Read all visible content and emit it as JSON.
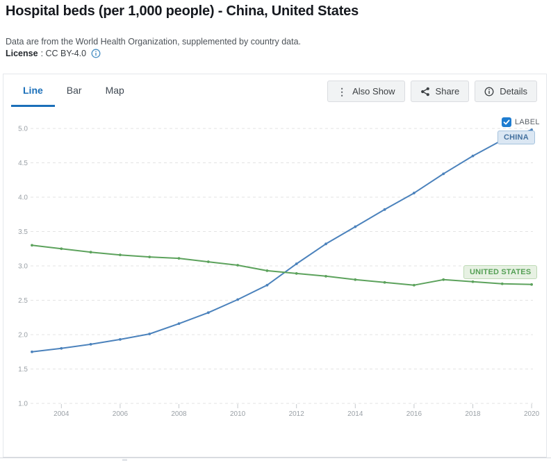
{
  "header": {
    "title": "Hospital beds (per 1,000 people) - China, United States",
    "subtitle": "Data are from the World Health Organization, supplemented by country data.",
    "license_label": "License",
    "license_value": ": CC BY-4.0"
  },
  "tabs": [
    {
      "label": "Line",
      "active": true
    },
    {
      "label": "Bar",
      "active": false
    },
    {
      "label": "Map",
      "active": false
    }
  ],
  "toolbar": {
    "also_show_label": "Also Show",
    "share_label": "Share",
    "details_label": "Details",
    "kebab_glyph": "⋮"
  },
  "legend": {
    "label_checkbox_text": "LABEL",
    "label_checkbox_checked": true
  },
  "colors": {
    "china_line": "#4b82bc",
    "us_line": "#5ca25c",
    "active_tab": "#1b6fb9",
    "checkbox_blue": "#1e7cd0",
    "gridline": "#e3e3e3",
    "axis_text": "#9aa0a6"
  },
  "chart_data": {
    "type": "line",
    "title": "Hospital beds (per 1,000 people) - China, United States",
    "xlabel": "",
    "ylabel": "",
    "x": [
      2003,
      2004,
      2005,
      2006,
      2007,
      2008,
      2009,
      2010,
      2011,
      2012,
      2013,
      2014,
      2015,
      2016,
      2017,
      2018,
      2019,
      2020
    ],
    "series": [
      {
        "name": "CHINA",
        "color": "#4b82bc",
        "values": [
          1.75,
          1.8,
          1.86,
          1.93,
          2.01,
          2.16,
          2.32,
          2.51,
          2.72,
          3.03,
          3.32,
          3.57,
          3.82,
          4.06,
          4.34,
          4.6,
          4.83,
          4.98
        ]
      },
      {
        "name": "UNITED STATES",
        "color": "#5ca25c",
        "values": [
          3.3,
          3.25,
          3.2,
          3.16,
          3.13,
          3.11,
          3.06,
          3.01,
          2.93,
          2.89,
          2.85,
          2.8,
          2.76,
          2.72,
          2.8,
          2.77,
          2.74,
          2.73
        ]
      }
    ],
    "ylim": [
      1.0,
      5.0
    ],
    "yticks": [
      5.0,
      4.5,
      4.0,
      3.5,
      3.0,
      2.5,
      2.0,
      1.5,
      1.0
    ],
    "xticks": [
      2004,
      2006,
      2008,
      2010,
      2012,
      2014,
      2016,
      2018,
      2020
    ],
    "grid": "horizontal-dashed",
    "legend_position": "series-end-labels"
  }
}
